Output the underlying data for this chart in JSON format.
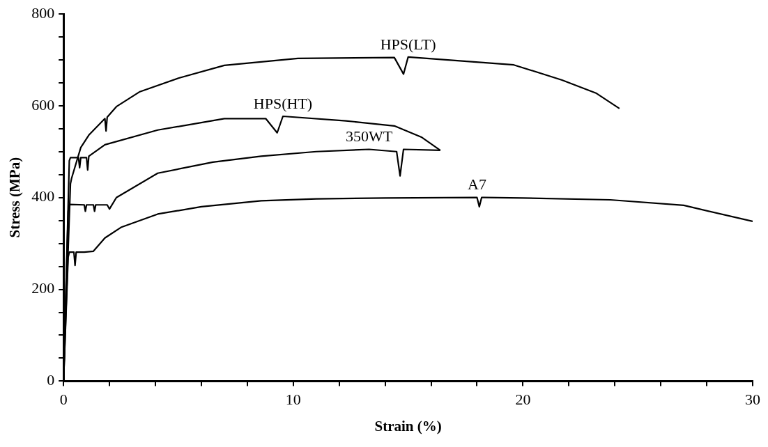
{
  "chart_data": {
    "type": "line",
    "xlabel": "Strain (%)",
    "ylabel": "Stress (MPa)",
    "xlim": [
      0,
      30
    ],
    "ylim": [
      0,
      800
    ],
    "xticks": [
      0,
      {
        "value": 2,
        "label": null
      },
      {
        "value": 4,
        "label": null
      },
      {
        "value": 6,
        "label": null
      },
      {
        "value": 8,
        "label": null
      },
      10,
      {
        "value": 12,
        "label": null
      },
      {
        "value": 14,
        "label": null
      },
      {
        "value": 16,
        "label": null
      },
      {
        "value": 18,
        "label": null
      },
      20,
      {
        "value": 22,
        "label": null
      },
      {
        "value": 24,
        "label": null
      },
      {
        "value": 26,
        "label": null
      },
      {
        "value": 28,
        "label": null
      },
      30
    ],
    "yticks": [
      0,
      {
        "value": 50,
        "label": null
      },
      {
        "value": 100,
        "label": null
      },
      {
        "value": 150,
        "label": null
      },
      200,
      {
        "value": 250,
        "label": null
      },
      {
        "value": 300,
        "label": null
      },
      {
        "value": 350,
        "label": null
      },
      400,
      {
        "value": 450,
        "label": null
      },
      {
        "value": 500,
        "label": null
      },
      {
        "value": 550,
        "label": null
      },
      600,
      {
        "value": 650,
        "label": null
      },
      {
        "value": 700,
        "label": null
      },
      {
        "value": 750,
        "label": null
      },
      800
    ],
    "grid": false,
    "legend": false,
    "marker": "none",
    "line_style": "solid",
    "series": [
      {
        "name": "A7",
        "color": "#000000",
        "x": [
          0,
          0.2,
          0.25,
          0.45,
          0.5,
          0.55,
          0.9,
          1.3,
          1.8,
          2.5,
          4.1,
          6,
          8.6,
          11,
          14,
          18,
          18.1,
          18.2,
          18.3,
          20,
          23.8,
          27,
          30
        ],
        "values": [
          0,
          270,
          281,
          281,
          252,
          281,
          281,
          283,
          312,
          335,
          364,
          380,
          393,
          397,
          399,
          400,
          380,
          400,
          400,
          399,
          395,
          383,
          348
        ]
      },
      {
        "name": "350WT",
        "color": "#000000",
        "x": [
          0,
          0.2,
          0.25,
          0.9,
          0.95,
          1.0,
          1.3,
          1.35,
          1.4,
          1.9,
          2.0,
          2.3,
          4.1,
          6.5,
          8.6,
          11,
          13.3,
          14.5,
          14.65,
          14.8,
          16.4
        ],
        "values": [
          0,
          370,
          385,
          384,
          370,
          384,
          384,
          370,
          384,
          384,
          375,
          400,
          453,
          477,
          490,
          500,
          505,
          500,
          447,
          505,
          503
        ]
      },
      {
        "name": "HPS(HT)",
        "color": "#000000",
        "x": [
          0,
          0.25,
          0.3,
          0.65,
          0.7,
          0.75,
          1.0,
          1.05,
          1.1,
          1.8,
          4.1,
          7.0,
          8.8,
          9.3,
          9.55,
          12.3,
          14.4,
          15.6,
          16.4
        ],
        "values": [
          0,
          480,
          487,
          487,
          465,
          487,
          487,
          460,
          490,
          515,
          547,
          572,
          572,
          541,
          577,
          567,
          556,
          531,
          503
        ]
      },
      {
        "name": "HPS(LT)",
        "color": "#000000",
        "x": [
          0,
          0.3,
          0.35,
          0.75,
          1.1,
          1.8,
          1.85,
          1.9,
          2.3,
          3.3,
          5,
          7.0,
          10.2,
          14.4,
          14.8,
          15.0,
          19.6,
          21.7,
          23.2,
          24.2
        ],
        "values": [
          0,
          430,
          442,
          509,
          536,
          572,
          545,
          575,
          598,
          630,
          660,
          688,
          703,
          705,
          669,
          706,
          689,
          656,
          627,
          594
        ]
      }
    ]
  }
}
